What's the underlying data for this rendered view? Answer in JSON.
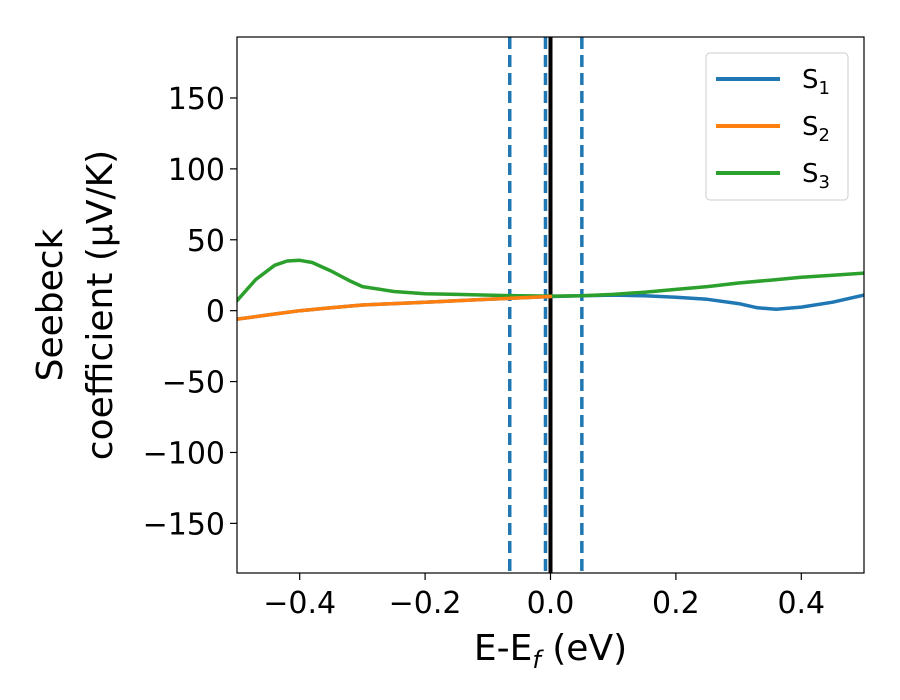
{
  "chart_data": {
    "type": "line",
    "xlabel": "E-E",
    "xlabel_sub": "f",
    "xlabel_unit": " (eV)",
    "ylabel_line1": "Seebeck",
    "ylabel_line2": "coefficient  (μV/K)",
    "xlim": [
      -0.5,
      0.5
    ],
    "ylim": [
      -185,
      193
    ],
    "x_ticks": [
      -0.4,
      -0.2,
      0.0,
      0.2,
      0.4
    ],
    "x_tick_labels": [
      "−0.4",
      "−0.2",
      "0.0",
      "0.2",
      "0.4"
    ],
    "y_ticks": [
      150,
      100,
      50,
      0,
      -50,
      -100,
      -150
    ],
    "y_tick_labels": [
      "150",
      "100",
      "50",
      "0",
      "−50",
      "−100",
      "−150"
    ],
    "grid": false,
    "legend": {
      "placement": "top-right"
    },
    "vlines": [
      {
        "x": -0.065,
        "style": "dashed",
        "color": "#1f77b4"
      },
      {
        "x": -0.008,
        "style": "dashed",
        "color": "#1f77b4"
      },
      {
        "x": 0.05,
        "style": "dashed",
        "color": "#1f77b4"
      },
      {
        "x": 0.0,
        "style": "solid",
        "color": "#000000"
      }
    ],
    "series": [
      {
        "name": "S",
        "sub": "1",
        "color": "#1f77b4",
        "x": [
          -0.5,
          -0.45,
          -0.4,
          -0.35,
          -0.3,
          -0.25,
          -0.2,
          -0.15,
          -0.1,
          -0.05,
          0.0,
          0.05,
          0.1,
          0.15,
          0.2,
          0.25,
          0.3,
          0.33,
          0.36,
          0.4,
          0.45,
          0.5
        ],
        "y": [
          -6,
          -3,
          0,
          2,
          4,
          5,
          6,
          7,
          8,
          9,
          10,
          10.5,
          11,
          10.5,
          9.5,
          8,
          5,
          2,
          1,
          2.5,
          6,
          11
        ]
      },
      {
        "name": "S",
        "sub": "2",
        "color": "#ff7f0e",
        "x": [
          -0.5,
          -0.45,
          -0.4,
          -0.35,
          -0.3,
          -0.25,
          -0.2,
          -0.15,
          -0.1,
          -0.05,
          0.0
        ],
        "y": [
          -6,
          -3,
          0,
          2,
          4,
          5,
          6,
          7,
          8,
          9,
          10
        ]
      },
      {
        "name": "S",
        "sub": "3",
        "color": "#2ca02c",
        "x": [
          -0.5,
          -0.47,
          -0.44,
          -0.42,
          -0.4,
          -0.38,
          -0.35,
          -0.32,
          -0.3,
          -0.25,
          -0.2,
          -0.15,
          -0.1,
          -0.05,
          0.0,
          0.05,
          0.1,
          0.15,
          0.2,
          0.25,
          0.3,
          0.35,
          0.4,
          0.45,
          0.5
        ],
        "y": [
          7,
          22,
          32,
          35,
          35.5,
          34,
          28,
          21,
          17,
          13.5,
          12,
          11.5,
          11,
          10.5,
          10.3,
          10.5,
          11.5,
          13,
          15,
          17,
          19.5,
          21.5,
          23.5,
          25,
          26.5
        ]
      }
    ]
  }
}
